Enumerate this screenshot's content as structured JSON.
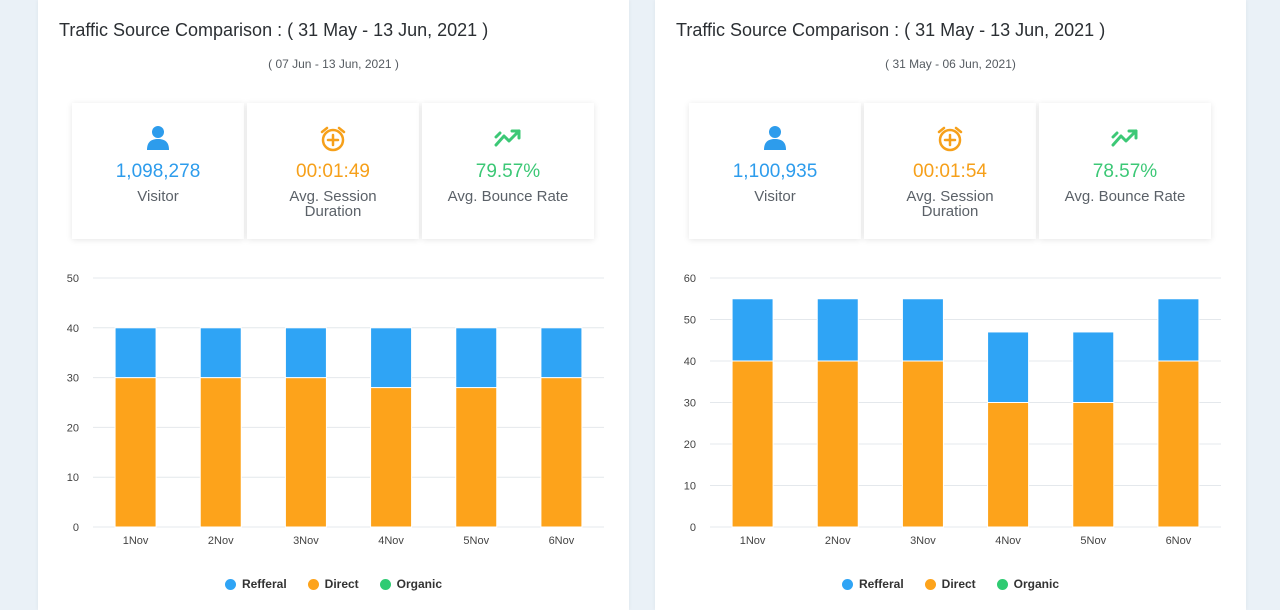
{
  "colors": {
    "visitor": "#2d9cec",
    "session": "#f6a01a",
    "bounce": "#3cc876",
    "referral": "#2fa4f5",
    "direct": "#fda31b",
    "organic": "#2fcb72"
  },
  "panels": [
    {
      "title": "Traffic Source Comparison : ( 31 May - 13 Jun, 2021 )",
      "subtitle": "( 07 Jun - 13 Jun, 2021 )",
      "stats": [
        {
          "icon": "person-icon",
          "value": "1,098,278",
          "label": "Visitor"
        },
        {
          "icon": "alarm-clock-icon",
          "value": "00:01:49",
          "label": "Avg. Session Duration"
        },
        {
          "icon": "trend-up-icon",
          "value": "79.57%",
          "label": "Avg. Bounce Rate"
        }
      ],
      "legend": [
        "Refferal",
        "Direct",
        "Organic"
      ]
    },
    {
      "title": "Traffic Source Comparison : ( 31 May - 13 Jun, 2021 )",
      "subtitle": "( 31 May - 06 Jun, 2021)",
      "stats": [
        {
          "icon": "person-icon",
          "value": "1,100,935",
          "label": "Visitor"
        },
        {
          "icon": "alarm-clock-icon",
          "value": "00:01:54",
          "label": "Avg. Session Duration"
        },
        {
          "icon": "trend-up-icon",
          "value": "78.57%",
          "label": "Avg. Bounce Rate"
        }
      ],
      "legend": [
        "Refferal",
        "Direct",
        "Organic"
      ]
    }
  ],
  "chart_data": [
    {
      "type": "bar",
      "stacked": true,
      "categories": [
        "1Nov",
        "2Nov",
        "3Nov",
        "4Nov",
        "5Nov",
        "6Nov"
      ],
      "series": [
        {
          "name": "Direct",
          "values": [
            30,
            30,
            30,
            28,
            28,
            30
          ]
        },
        {
          "name": "Refferal",
          "values": [
            10,
            10,
            10,
            12,
            12,
            10
          ]
        },
        {
          "name": "Organic",
          "values": [
            0,
            0,
            0,
            0,
            0,
            0
          ]
        }
      ],
      "ylim": [
        0,
        50
      ],
      "yticks": [
        0,
        10,
        20,
        30,
        40,
        50
      ],
      "grid": true,
      "legend_position": "bottom"
    },
    {
      "type": "bar",
      "stacked": true,
      "categories": [
        "1Nov",
        "2Nov",
        "3Nov",
        "4Nov",
        "5Nov",
        "6Nov"
      ],
      "series": [
        {
          "name": "Direct",
          "values": [
            40,
            40,
            40,
            30,
            30,
            40
          ]
        },
        {
          "name": "Refferal",
          "values": [
            15,
            15,
            15,
            17,
            17,
            15
          ]
        },
        {
          "name": "Organic",
          "values": [
            0,
            0,
            0,
            0,
            0,
            0
          ]
        }
      ],
      "ylim": [
        0,
        60
      ],
      "yticks": [
        0,
        10,
        20,
        30,
        40,
        50,
        60
      ],
      "grid": true,
      "legend_position": "bottom"
    }
  ]
}
